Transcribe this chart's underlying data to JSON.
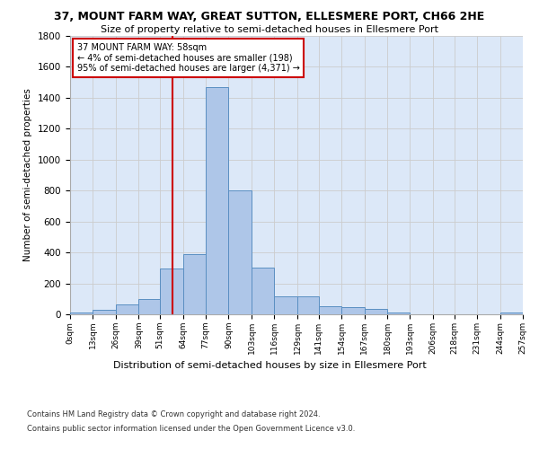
{
  "title1": "37, MOUNT FARM WAY, GREAT SUTTON, ELLESMERE PORT, CH66 2HE",
  "title2": "Size of property relative to semi-detached houses in Ellesmere Port",
  "xlabel": "Distribution of semi-detached houses by size in Ellesmere Port",
  "ylabel": "Number of semi-detached properties",
  "annotation_line1": "37 MOUNT FARM WAY: 58sqm",
  "annotation_line2": "← 4% of semi-detached houses are smaller (198)",
  "annotation_line3": "95% of semi-detached houses are larger (4,371) →",
  "footnote1": "Contains HM Land Registry data © Crown copyright and database right 2024.",
  "footnote2": "Contains public sector information licensed under the Open Government Licence v3.0.",
  "property_size": 58,
  "bin_edges": [
    0,
    13,
    26,
    39,
    51,
    64,
    77,
    90,
    103,
    116,
    129,
    141,
    154,
    167,
    180,
    193,
    206,
    218,
    231,
    244,
    257
  ],
  "bar_heights": [
    10,
    30,
    65,
    100,
    295,
    390,
    1470,
    800,
    300,
    115,
    115,
    50,
    45,
    35,
    12,
    0,
    0,
    0,
    0,
    10
  ],
  "bar_color": "#aec6e8",
  "bar_edge_color": "#5a8fc2",
  "vline_color": "#cc0000",
  "vline_x": 58,
  "box_color": "#cc0000",
  "ylim": [
    0,
    1800
  ],
  "yticks": [
    0,
    200,
    400,
    600,
    800,
    1000,
    1200,
    1400,
    1600,
    1800
  ],
  "grid_color": "#cccccc",
  "background_color": "#ffffff",
  "plot_bg_color": "#dce8f8"
}
